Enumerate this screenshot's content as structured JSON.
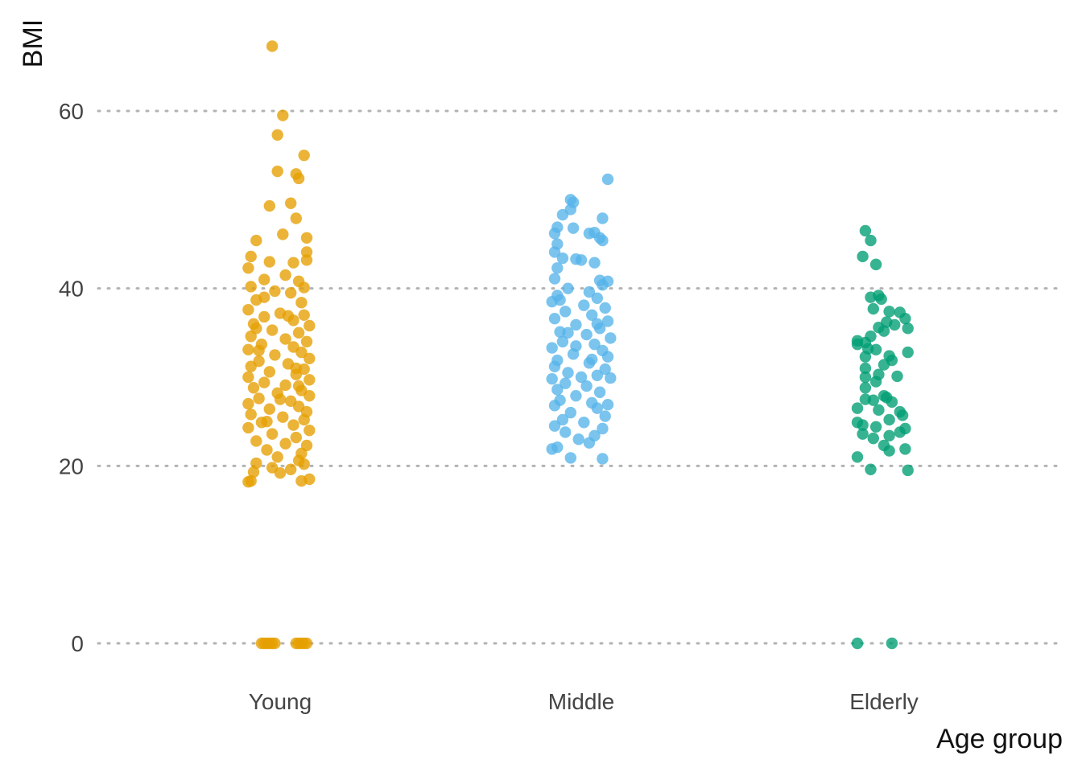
{
  "chart_data": {
    "type": "scatter",
    "title": "",
    "xlabel": "Age group",
    "ylabel": "BMI",
    "ylim": [
      -5,
      70
    ],
    "yticks": [
      0,
      20,
      40,
      60
    ],
    "categories": [
      "Young",
      "Middle",
      "Elderly"
    ],
    "grid": "horizontal dotted",
    "legend": "none",
    "series": [
      {
        "category": "Young",
        "color": "#E69F00",
        "points": [
          {
            "j": -0.03,
            "y": 67.3
          },
          {
            "j": 0.01,
            "y": 59.5
          },
          {
            "j": -0.01,
            "y": 57.3
          },
          {
            "j": 0.09,
            "y": 55.0
          },
          {
            "j": -0.01,
            "y": 53.2
          },
          {
            "j": 0.06,
            "y": 52.9
          },
          {
            "j": 0.07,
            "y": 52.4
          },
          {
            "j": -0.04,
            "y": 49.3
          },
          {
            "j": 0.04,
            "y": 49.6
          },
          {
            "j": 0.06,
            "y": 47.9
          },
          {
            "j": 0.01,
            "y": 46.1
          },
          {
            "j": -0.09,
            "y": 45.4
          },
          {
            "j": 0.1,
            "y": 45.7
          },
          {
            "j": 0.1,
            "y": 44.1
          },
          {
            "j": -0.11,
            "y": 43.6
          },
          {
            "j": -0.04,
            "y": 43.0
          },
          {
            "j": 0.05,
            "y": 42.9
          },
          {
            "j": -0.12,
            "y": 42.3
          },
          {
            "j": 0.1,
            "y": 43.2
          },
          {
            "j": 0.02,
            "y": 41.5
          },
          {
            "j": -0.06,
            "y": 41.0
          },
          {
            "j": 0.07,
            "y": 40.8
          },
          {
            "j": -0.11,
            "y": 40.2
          },
          {
            "j": 0.09,
            "y": 40.1
          },
          {
            "j": -0.02,
            "y": 39.7
          },
          {
            "j": 0.04,
            "y": 39.5
          },
          {
            "j": -0.09,
            "y": 38.7
          },
          {
            "j": 0.08,
            "y": 38.4
          },
          {
            "j": -0.12,
            "y": 37.6
          },
          {
            "j": 0.0,
            "y": 37.2
          },
          {
            "j": 0.09,
            "y": 37.0
          },
          {
            "j": -0.06,
            "y": 36.8
          },
          {
            "j": 0.05,
            "y": 36.4
          },
          {
            "j": -0.1,
            "y": 36.0
          },
          {
            "j": 0.11,
            "y": 35.8
          },
          {
            "j": -0.03,
            "y": 35.3
          },
          {
            "j": 0.07,
            "y": 35.0
          },
          {
            "j": -0.11,
            "y": 34.6
          },
          {
            "j": 0.02,
            "y": 34.3
          },
          {
            "j": 0.1,
            "y": 34.0
          },
          {
            "j": -0.07,
            "y": 33.7
          },
          {
            "j": 0.05,
            "y": 33.4
          },
          {
            "j": -0.12,
            "y": 33.1
          },
          {
            "j": 0.08,
            "y": 32.8
          },
          {
            "j": -0.02,
            "y": 32.5
          },
          {
            "j": 0.11,
            "y": 32.1
          },
          {
            "j": -0.08,
            "y": 31.8
          },
          {
            "j": 0.03,
            "y": 31.5
          },
          {
            "j": -0.11,
            "y": 31.2
          },
          {
            "j": 0.09,
            "y": 30.9
          },
          {
            "j": -0.04,
            "y": 30.6
          },
          {
            "j": 0.06,
            "y": 30.3
          },
          {
            "j": -0.12,
            "y": 30.0
          },
          {
            "j": 0.11,
            "y": 29.7
          },
          {
            "j": -0.06,
            "y": 29.4
          },
          {
            "j": 0.02,
            "y": 29.1
          },
          {
            "j": -0.1,
            "y": 28.8
          },
          {
            "j": 0.08,
            "y": 28.5
          },
          {
            "j": -0.01,
            "y": 28.2
          },
          {
            "j": 0.11,
            "y": 27.9
          },
          {
            "j": -0.08,
            "y": 27.6
          },
          {
            "j": 0.04,
            "y": 27.3
          },
          {
            "j": -0.12,
            "y": 27.0
          },
          {
            "j": 0.07,
            "y": 26.7
          },
          {
            "j": -0.04,
            "y": 26.4
          },
          {
            "j": 0.1,
            "y": 26.1
          },
          {
            "j": -0.11,
            "y": 25.8
          },
          {
            "j": 0.01,
            "y": 25.5
          },
          {
            "j": 0.09,
            "y": 25.2
          },
          {
            "j": -0.07,
            "y": 24.9
          },
          {
            "j": 0.05,
            "y": 24.6
          },
          {
            "j": -0.12,
            "y": 24.3
          },
          {
            "j": 0.11,
            "y": 24.0
          },
          {
            "j": -0.03,
            "y": 23.6
          },
          {
            "j": 0.06,
            "y": 23.2
          },
          {
            "j": -0.09,
            "y": 22.8
          },
          {
            "j": 0.02,
            "y": 22.5
          },
          {
            "j": 0.1,
            "y": 22.3
          },
          {
            "j": -0.05,
            "y": 21.8
          },
          {
            "j": 0.08,
            "y": 21.4
          },
          {
            "j": -0.01,
            "y": 21.0
          },
          {
            "j": 0.07,
            "y": 20.6
          },
          {
            "j": -0.09,
            "y": 20.3
          },
          {
            "j": 0.09,
            "y": 20.2
          },
          {
            "j": -0.03,
            "y": 19.8
          },
          {
            "j": 0.04,
            "y": 19.6
          },
          {
            "j": -0.1,
            "y": 19.3
          },
          {
            "j": 0.0,
            "y": 19.2
          },
          {
            "j": -0.11,
            "y": 18.3
          },
          {
            "j": 0.11,
            "y": 18.5
          },
          {
            "j": 0.08,
            "y": 18.3
          },
          {
            "j": -0.12,
            "y": 18.2
          },
          {
            "j": -0.06,
            "y": 39.0
          },
          {
            "j": 0.03,
            "y": 36.9
          },
          {
            "j": -0.08,
            "y": 33.0
          },
          {
            "j": 0.07,
            "y": 29.0
          },
          {
            "j": -0.05,
            "y": 25.0
          },
          {
            "j": 0.0,
            "y": 27.5
          },
          {
            "j": -0.09,
            "y": 35.5
          },
          {
            "j": 0.06,
            "y": 31.0
          },
          {
            "j": -0.07,
            "y": 0
          },
          {
            "j": -0.06,
            "y": 0
          },
          {
            "j": -0.05,
            "y": 0
          },
          {
            "j": -0.04,
            "y": 0
          },
          {
            "j": -0.03,
            "y": 0
          },
          {
            "j": -0.02,
            "y": 0
          },
          {
            "j": 0.06,
            "y": 0
          },
          {
            "j": 0.07,
            "y": 0
          },
          {
            "j": 0.08,
            "y": 0
          },
          {
            "j": 0.09,
            "y": 0
          },
          {
            "j": 0.1,
            "y": 0
          }
        ]
      },
      {
        "category": "Middle",
        "color": "#56B4E9",
        "points": [
          {
            "j": 0.1,
            "y": 52.3
          },
          {
            "j": -0.04,
            "y": 50.0
          },
          {
            "j": -0.03,
            "y": 49.7
          },
          {
            "j": -0.04,
            "y": 48.9
          },
          {
            "j": -0.07,
            "y": 48.3
          },
          {
            "j": 0.08,
            "y": 47.9
          },
          {
            "j": -0.09,
            "y": 46.9
          },
          {
            "j": -0.03,
            "y": 46.8
          },
          {
            "j": -0.1,
            "y": 46.2
          },
          {
            "j": 0.03,
            "y": 46.2
          },
          {
            "j": 0.05,
            "y": 46.3
          },
          {
            "j": 0.07,
            "y": 45.7
          },
          {
            "j": 0.08,
            "y": 45.4
          },
          {
            "j": -0.09,
            "y": 45.0
          },
          {
            "j": -0.1,
            "y": 44.1
          },
          {
            "j": -0.07,
            "y": 43.4
          },
          {
            "j": -0.02,
            "y": 43.3
          },
          {
            "j": 0.0,
            "y": 43.2
          },
          {
            "j": 0.05,
            "y": 42.9
          },
          {
            "j": -0.09,
            "y": 42.3
          },
          {
            "j": -0.1,
            "y": 41.1
          },
          {
            "j": 0.07,
            "y": 40.9
          },
          {
            "j": 0.1,
            "y": 40.8
          },
          {
            "j": 0.08,
            "y": 40.4
          },
          {
            "j": -0.05,
            "y": 40.0
          },
          {
            "j": 0.03,
            "y": 39.6
          },
          {
            "j": -0.09,
            "y": 39.2
          },
          {
            "j": 0.06,
            "y": 38.9
          },
          {
            "j": -0.11,
            "y": 38.5
          },
          {
            "j": 0.01,
            "y": 38.1
          },
          {
            "j": 0.09,
            "y": 37.8
          },
          {
            "j": -0.06,
            "y": 37.4
          },
          {
            "j": 0.04,
            "y": 37.0
          },
          {
            "j": -0.1,
            "y": 36.6
          },
          {
            "j": 0.1,
            "y": 36.3
          },
          {
            "j": -0.02,
            "y": 35.9
          },
          {
            "j": 0.07,
            "y": 35.5
          },
          {
            "j": -0.08,
            "y": 35.1
          },
          {
            "j": 0.02,
            "y": 34.8
          },
          {
            "j": 0.11,
            "y": 34.4
          },
          {
            "j": -0.07,
            "y": 34.0
          },
          {
            "j": 0.05,
            "y": 33.7
          },
          {
            "j": -0.11,
            "y": 33.3
          },
          {
            "j": 0.08,
            "y": 33.0
          },
          {
            "j": -0.03,
            "y": 32.6
          },
          {
            "j": 0.1,
            "y": 32.3
          },
          {
            "j": -0.09,
            "y": 31.9
          },
          {
            "j": 0.03,
            "y": 31.6
          },
          {
            "j": -0.1,
            "y": 31.2
          },
          {
            "j": 0.09,
            "y": 30.9
          },
          {
            "j": -0.05,
            "y": 30.5
          },
          {
            "j": 0.06,
            "y": 30.2
          },
          {
            "j": -0.11,
            "y": 29.8
          },
          {
            "j": 0.11,
            "y": 29.9
          },
          {
            "j": -0.06,
            "y": 29.3
          },
          {
            "j": 0.02,
            "y": 29.0
          },
          {
            "j": -0.09,
            "y": 28.6
          },
          {
            "j": 0.07,
            "y": 28.3
          },
          {
            "j": -0.02,
            "y": 27.9
          },
          {
            "j": 0.1,
            "y": 26.9
          },
          {
            "j": -0.08,
            "y": 27.4
          },
          {
            "j": 0.04,
            "y": 27.1
          },
          {
            "j": -0.1,
            "y": 26.8
          },
          {
            "j": 0.06,
            "y": 26.5
          },
          {
            "j": -0.04,
            "y": 26.0
          },
          {
            "j": 0.09,
            "y": 25.6
          },
          {
            "j": -0.07,
            "y": 25.2
          },
          {
            "j": 0.01,
            "y": 24.9
          },
          {
            "j": -0.1,
            "y": 24.5
          },
          {
            "j": 0.08,
            "y": 24.2
          },
          {
            "j": -0.06,
            "y": 23.8
          },
          {
            "j": 0.05,
            "y": 23.4
          },
          {
            "j": -0.01,
            "y": 23.0
          },
          {
            "j": 0.03,
            "y": 22.6
          },
          {
            "j": -0.09,
            "y": 22.1
          },
          {
            "j": -0.11,
            "y": 21.9
          },
          {
            "j": -0.04,
            "y": 20.9
          },
          {
            "j": 0.08,
            "y": 20.8
          },
          {
            "j": -0.08,
            "y": 38.7
          },
          {
            "j": 0.04,
            "y": 32.0
          },
          {
            "j": -0.05,
            "y": 35.0
          },
          {
            "j": 0.0,
            "y": 30.0
          },
          {
            "j": 0.06,
            "y": 36.0
          },
          {
            "j": -0.02,
            "y": 33.5
          }
        ]
      },
      {
        "category": "Elderly",
        "color": "#009E73",
        "points": [
          {
            "j": -0.07,
            "y": 46.5
          },
          {
            "j": -0.05,
            "y": 45.4
          },
          {
            "j": -0.08,
            "y": 43.6
          },
          {
            "j": -0.03,
            "y": 42.7
          },
          {
            "j": -0.02,
            "y": 39.2
          },
          {
            "j": -0.05,
            "y": 39.0
          },
          {
            "j": -0.01,
            "y": 38.8
          },
          {
            "j": -0.04,
            "y": 37.7
          },
          {
            "j": 0.02,
            "y": 37.4
          },
          {
            "j": 0.06,
            "y": 37.3
          },
          {
            "j": 0.08,
            "y": 36.6
          },
          {
            "j": 0.01,
            "y": 36.2
          },
          {
            "j": 0.04,
            "y": 35.9
          },
          {
            "j": -0.02,
            "y": 35.6
          },
          {
            "j": 0.09,
            "y": 35.5
          },
          {
            "j": 0.0,
            "y": 35.2
          },
          {
            "j": -0.05,
            "y": 34.6
          },
          {
            "j": -0.1,
            "y": 34.1
          },
          {
            "j": -0.07,
            "y": 33.9
          },
          {
            "j": -0.1,
            "y": 33.7
          },
          {
            "j": -0.06,
            "y": 33.2
          },
          {
            "j": -0.03,
            "y": 33.1
          },
          {
            "j": 0.09,
            "y": 32.8
          },
          {
            "j": -0.07,
            "y": 32.3
          },
          {
            "j": 0.02,
            "y": 32.4
          },
          {
            "j": 0.03,
            "y": 31.9
          },
          {
            "j": 0.0,
            "y": 31.4
          },
          {
            "j": -0.07,
            "y": 31.0
          },
          {
            "j": -0.02,
            "y": 30.3
          },
          {
            "j": 0.05,
            "y": 30.1
          },
          {
            "j": -0.07,
            "y": 30.0
          },
          {
            "j": -0.03,
            "y": 29.5
          },
          {
            "j": -0.07,
            "y": 28.8
          },
          {
            "j": 0.0,
            "y": 27.9
          },
          {
            "j": 0.01,
            "y": 27.7
          },
          {
            "j": -0.04,
            "y": 27.4
          },
          {
            "j": -0.07,
            "y": 27.5
          },
          {
            "j": 0.03,
            "y": 27.2
          },
          {
            "j": -0.1,
            "y": 26.5
          },
          {
            "j": -0.02,
            "y": 26.3
          },
          {
            "j": 0.06,
            "y": 26.1
          },
          {
            "j": 0.07,
            "y": 25.7
          },
          {
            "j": 0.02,
            "y": 25.2
          },
          {
            "j": -0.1,
            "y": 24.9
          },
          {
            "j": -0.08,
            "y": 24.6
          },
          {
            "j": -0.03,
            "y": 24.4
          },
          {
            "j": 0.08,
            "y": 24.2
          },
          {
            "j": 0.06,
            "y": 23.8
          },
          {
            "j": -0.08,
            "y": 23.6
          },
          {
            "j": 0.02,
            "y": 23.4
          },
          {
            "j": -0.04,
            "y": 23.1
          },
          {
            "j": 0.0,
            "y": 22.3
          },
          {
            "j": 0.08,
            "y": 21.9
          },
          {
            "j": 0.02,
            "y": 21.7
          },
          {
            "j": -0.1,
            "y": 21.0
          },
          {
            "j": -0.05,
            "y": 19.6
          },
          {
            "j": 0.09,
            "y": 19.5
          },
          {
            "j": -0.1,
            "y": 0
          },
          {
            "j": 0.03,
            "y": 0
          }
        ]
      }
    ]
  }
}
